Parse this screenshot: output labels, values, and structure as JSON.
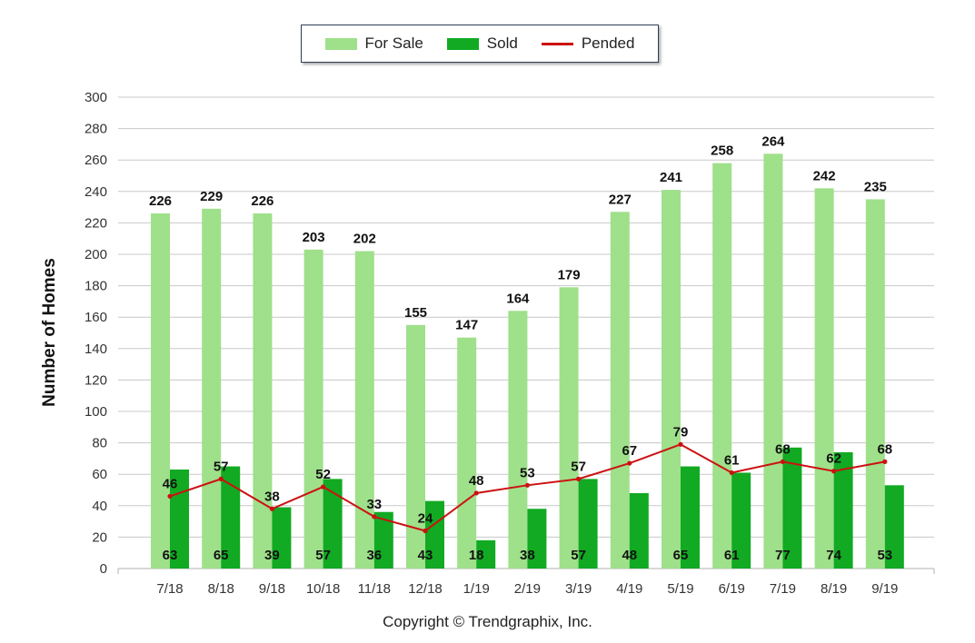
{
  "legend": {
    "for_sale": "For Sale",
    "sold": "Sold",
    "pended": "Pended"
  },
  "copyright": "Copyright © Trendgraphix, Inc.",
  "colors": {
    "for_sale": "#9fe08a",
    "sold": "#11aa22",
    "pended": "#cc1111",
    "grid": "#c8c8c8",
    "axis_text": "#333333"
  },
  "chart_data": {
    "type": "bar",
    "categories": [
      "7/18",
      "8/18",
      "9/18",
      "10/18",
      "11/18",
      "12/18",
      "1/19",
      "2/19",
      "3/19",
      "4/19",
      "5/19",
      "6/19",
      "7/19",
      "8/19",
      "9/19"
    ],
    "series": [
      {
        "name": "For Sale",
        "type": "bar",
        "values": [
          226,
          229,
          226,
          203,
          202,
          155,
          147,
          164,
          179,
          227,
          241,
          258,
          264,
          242,
          235
        ]
      },
      {
        "name": "Sold",
        "type": "bar",
        "values": [
          63,
          65,
          39,
          57,
          36,
          43,
          18,
          38,
          57,
          48,
          65,
          61,
          77,
          74,
          53
        ]
      },
      {
        "name": "Pended",
        "type": "line",
        "values": [
          46,
          57,
          38,
          52,
          33,
          24,
          48,
          53,
          57,
          67,
          79,
          61,
          68,
          62,
          68
        ]
      }
    ],
    "title": "",
    "xlabel": "",
    "ylabel": "Number of Homes",
    "ylim": [
      0,
      300
    ],
    "yticks": [
      0,
      20,
      40,
      60,
      80,
      100,
      120,
      140,
      160,
      180,
      200,
      220,
      240,
      260,
      280,
      300
    ],
    "grid": true,
    "legend_position": "top-center"
  }
}
